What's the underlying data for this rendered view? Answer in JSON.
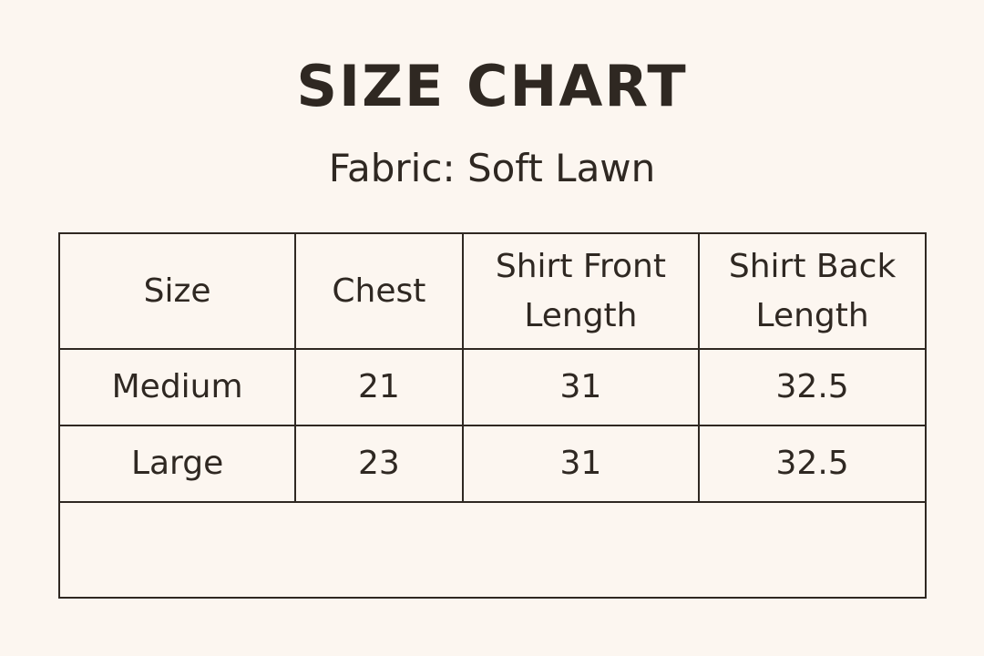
{
  "title": "SIZE CHART",
  "subtitle": "Fabric: Soft Lawn",
  "table": {
    "headers": [
      "Size",
      "Chest",
      "Shirt Front Length",
      "Shirt Back Length"
    ],
    "rows": [
      [
        "Medium",
        "21",
        "31",
        "32.5"
      ],
      [
        "Large",
        "23",
        "31",
        "32.5"
      ]
    ]
  },
  "colors": {
    "background": "#fcf6f0",
    "text": "#2f2822"
  }
}
